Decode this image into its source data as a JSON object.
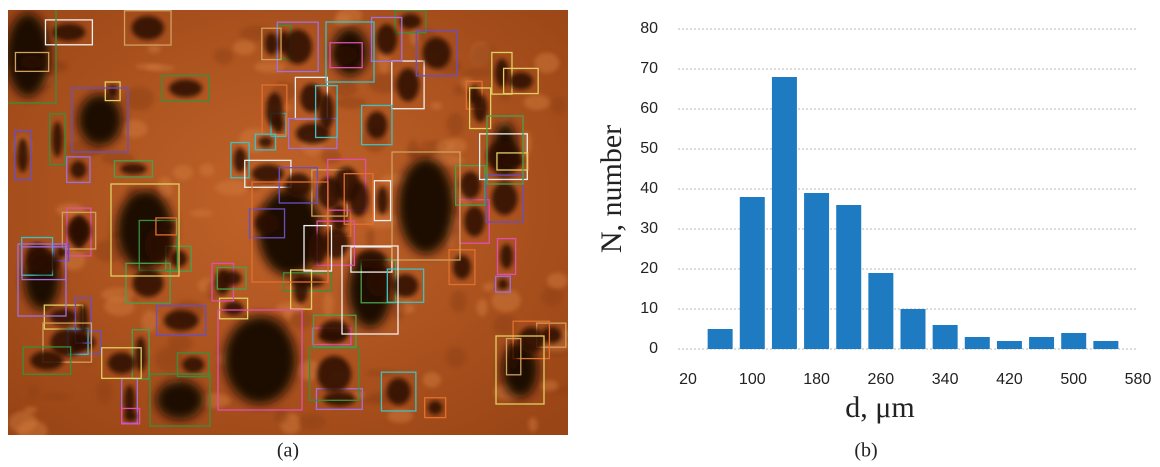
{
  "panel_labels": {
    "a": "(a)",
    "b": "(b)"
  },
  "chart_data": {
    "type": "bar",
    "xlabel": "d, μm",
    "ylabel": "N, number",
    "x": [
      60,
      100,
      140,
      180,
      220,
      260,
      300,
      340,
      380,
      420,
      460,
      500,
      540
    ],
    "values": [
      5,
      38,
      68,
      39,
      36,
      19,
      10,
      6,
      3,
      2,
      3,
      4,
      2
    ],
    "color": "#1f7bc1",
    "xlim": [
      20,
      580
    ],
    "xticks": [
      20,
      100,
      180,
      260,
      340,
      420,
      500,
      580
    ],
    "ylim": [
      0,
      80
    ],
    "yticks": [
      0,
      10,
      20,
      30,
      40,
      50,
      60,
      70,
      80
    ],
    "grid": true
  }
}
